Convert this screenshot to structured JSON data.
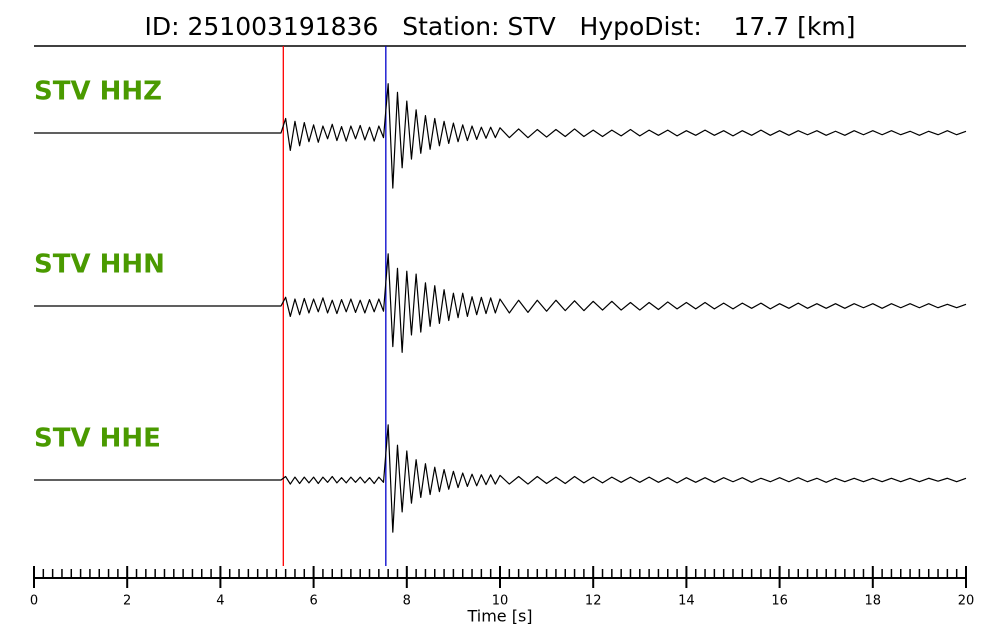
{
  "chart_data": {
    "type": "line",
    "title": "ID: 251003191836   Station: STV   HypoDist:    17.7 [km]",
    "xlabel": "Time [s]",
    "xlim": [
      0,
      20
    ],
    "xticks": [
      0,
      2,
      4,
      6,
      8,
      10,
      12,
      14,
      16,
      18,
      20
    ],
    "xminor_step": 0.2,
    "ylim": [
      -1,
      1
    ],
    "label_color": "#4a9a00",
    "picks": [
      {
        "time": 5.35,
        "color": "#ff0000"
      },
      {
        "time": 7.55,
        "color": "#0000cc"
      }
    ],
    "x": [
      0,
      5.3,
      5.4,
      5.5,
      5.6,
      5.7,
      5.8,
      5.9,
      6.0,
      6.1,
      6.2,
      6.3,
      6.4,
      6.5,
      6.6,
      6.7,
      6.8,
      6.9,
      7.0,
      7.1,
      7.2,
      7.3,
      7.4,
      7.5,
      7.6,
      7.7,
      7.8,
      7.9,
      8.0,
      8.1,
      8.2,
      8.3,
      8.4,
      8.5,
      8.6,
      8.7,
      8.8,
      8.9,
      9.0,
      9.1,
      9.2,
      9.3,
      9.4,
      9.5,
      9.6,
      9.7,
      9.8,
      9.9,
      10.0,
      10.2,
      10.4,
      10.6,
      10.8,
      11.0,
      11.2,
      11.4,
      11.6,
      11.8,
      12.0,
      12.2,
      12.4,
      12.6,
      12.8,
      13.0,
      13.2,
      13.4,
      13.6,
      13.8,
      14.0,
      14.2,
      14.4,
      14.6,
      14.8,
      15.0,
      15.2,
      15.4,
      15.6,
      15.8,
      16.0,
      16.2,
      16.4,
      16.6,
      16.8,
      17.0,
      17.2,
      17.4,
      17.6,
      17.8,
      18.0,
      18.2,
      18.4,
      18.6,
      18.8,
      19.0,
      19.2,
      19.4,
      19.6,
      19.8,
      20.0
    ],
    "series": [
      {
        "name": "STV HHZ",
        "color": "#000000",
        "values": [
          0,
          0,
          0.25,
          -0.3,
          0.2,
          -0.22,
          0.18,
          -0.15,
          0.14,
          -0.16,
          0.12,
          -0.1,
          0.15,
          -0.13,
          0.11,
          -0.14,
          0.12,
          -0.1,
          0.13,
          -0.12,
          0.1,
          -0.14,
          0.12,
          -0.08,
          0.85,
          -0.95,
          0.7,
          -0.6,
          0.55,
          -0.45,
          0.4,
          -0.35,
          0.3,
          -0.28,
          0.25,
          -0.22,
          0.2,
          -0.18,
          0.17,
          -0.15,
          0.14,
          -0.13,
          0.12,
          -0.11,
          0.1,
          -0.09,
          0.1,
          -0.08,
          0.09,
          -0.08,
          0.07,
          -0.08,
          0.06,
          -0.07,
          0.06,
          -0.06,
          0.07,
          -0.06,
          0.05,
          -0.06,
          0.05,
          -0.05,
          0.06,
          -0.05,
          0.05,
          -0.04,
          0.05,
          -0.05,
          0.04,
          -0.04,
          0.05,
          -0.04,
          0.04,
          -0.05,
          0.04,
          -0.04,
          0.05,
          -0.04,
          0.04,
          -0.04,
          0.04,
          -0.03,
          0.04,
          -0.04,
          0.03,
          -0.04,
          0.04,
          -0.03,
          0.04,
          -0.03,
          0.04,
          -0.03,
          0.03,
          -0.04,
          0.03,
          -0.03,
          0.04,
          -0.03,
          0.03
        ]
      },
      {
        "name": "STV HHN",
        "color": "#000000",
        "values": [
          0,
          0,
          0.15,
          -0.18,
          0.12,
          -0.15,
          0.13,
          -0.12,
          0.12,
          -0.1,
          0.14,
          -0.12,
          0.1,
          -0.13,
          0.11,
          -0.1,
          0.12,
          -0.11,
          0.1,
          -0.12,
          0.11,
          -0.1,
          0.12,
          -0.09,
          0.9,
          -0.7,
          0.65,
          -0.8,
          0.6,
          -0.5,
          0.55,
          -0.45,
          0.4,
          -0.35,
          0.35,
          -0.3,
          0.28,
          -0.25,
          0.22,
          -0.2,
          0.22,
          -0.18,
          0.16,
          -0.15,
          0.15,
          -0.13,
          0.14,
          -0.12,
          0.12,
          -0.12,
          0.1,
          -0.11,
          0.1,
          -0.09,
          0.1,
          -0.08,
          0.09,
          -0.08,
          0.08,
          -0.07,
          0.08,
          -0.07,
          0.06,
          -0.07,
          0.06,
          -0.06,
          0.07,
          -0.05,
          0.06,
          -0.05,
          0.06,
          -0.05,
          0.05,
          -0.05,
          0.05,
          -0.04,
          0.05,
          -0.05,
          0.04,
          -0.04,
          0.05,
          -0.04,
          0.04,
          -0.04,
          0.04,
          -0.04,
          0.04,
          -0.03,
          0.04,
          -0.04,
          0.04,
          -0.03,
          0.04,
          -0.03,
          0.04,
          -0.03,
          0.03,
          -0.03,
          0.03
        ]
      },
      {
        "name": "STV HHE",
        "color": "#000000",
        "values": [
          0,
          0,
          0.06,
          -0.07,
          0.05,
          -0.06,
          0.05,
          -0.05,
          0.05,
          -0.06,
          0.05,
          -0.04,
          0.06,
          -0.05,
          0.04,
          -0.05,
          0.05,
          -0.04,
          0.05,
          -0.05,
          0.04,
          -0.06,
          0.05,
          -0.04,
          0.95,
          -0.9,
          0.6,
          -0.55,
          0.5,
          -0.4,
          0.35,
          -0.3,
          0.28,
          -0.25,
          0.22,
          -0.2,
          0.18,
          -0.16,
          0.15,
          -0.13,
          0.12,
          -0.11,
          0.1,
          -0.1,
          0.09,
          -0.08,
          0.09,
          -0.07,
          0.08,
          -0.07,
          0.06,
          -0.07,
          0.06,
          -0.06,
          0.05,
          -0.06,
          0.06,
          -0.05,
          0.05,
          -0.05,
          0.05,
          -0.04,
          0.05,
          -0.04,
          0.05,
          -0.04,
          0.04,
          -0.05,
          0.04,
          -0.04,
          0.04,
          -0.04,
          0.04,
          -0.03,
          0.04,
          -0.04,
          0.03,
          -0.03,
          0.04,
          -0.03,
          0.04,
          -0.03,
          0.03,
          -0.04,
          0.03,
          -0.03,
          0.03,
          -0.03,
          0.03,
          -0.03,
          0.03,
          -0.03,
          0.03,
          -0.03,
          0.03,
          -0.02,
          0.03,
          -0.03,
          0.03
        ]
      }
    ]
  }
}
